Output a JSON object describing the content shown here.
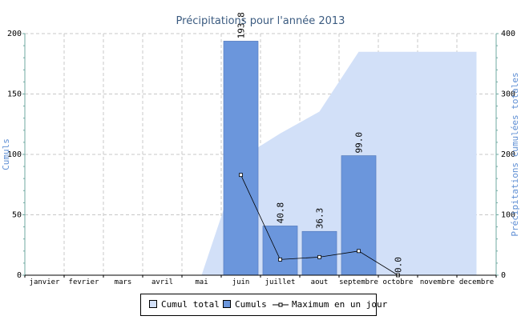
{
  "chart_data": {
    "type": "bar",
    "title": "Précipitations pour l'année 2013",
    "ylabel": "Cumuls",
    "y2label": "Précipitations cumulées totales",
    "ylim": [
      0,
      200
    ],
    "y2lim": [
      0,
      400
    ],
    "yticks": [
      "0",
      "50",
      "100",
      "150",
      "200"
    ],
    "y2ticks": [
      "0",
      "100",
      "200",
      "300",
      "400"
    ],
    "categories": [
      "janvier",
      "fevrier",
      "mars",
      "avril",
      "mai",
      "juin",
      "juillet",
      "aout",
      "septembre",
      "octobre",
      "novembre",
      "decembre"
    ],
    "grid": true,
    "legend_position": "bottom",
    "series": [
      {
        "name": "Cumul total",
        "type": "area",
        "axis": "right",
        "values": [
          0,
          0,
          0,
          0,
          0,
          193.8,
          234.6,
          270.9,
          369.9,
          369.9,
          369.9,
          369.9
        ],
        "color": "#d2e0f8"
      },
      {
        "name": "Cumuls",
        "type": "bar",
        "axis": "left",
        "values": [
          null,
          null,
          null,
          null,
          null,
          193.8,
          40.8,
          36.3,
          99.0,
          0.0,
          null,
          null
        ],
        "labels": [
          "",
          "",
          "",
          "",
          "",
          "193.8",
          "40.8",
          "36.3",
          "99.0",
          "0.0",
          "",
          ""
        ],
        "color": "#6b96dc"
      },
      {
        "name": "Maximum en un jour",
        "type": "line",
        "axis": "left",
        "values": [
          null,
          null,
          null,
          null,
          null,
          83,
          13,
          15,
          20,
          0,
          null,
          null
        ],
        "color": "#000000"
      }
    ]
  },
  "legend": {
    "items": [
      "Cumul total",
      "Cumuls",
      "Maximum en un jour"
    ]
  }
}
